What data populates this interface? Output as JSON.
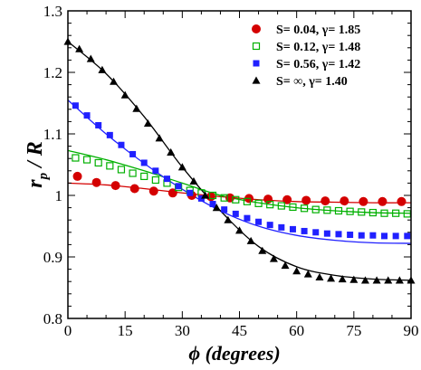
{
  "chart_data": {
    "type": "scatter",
    "xlabel": "ϕ (degrees)",
    "ylabel": "r_p / R",
    "xlim": [
      0,
      90
    ],
    "ylim": [
      0.8,
      1.3
    ],
    "xticks": [
      0,
      15,
      30,
      45,
      60,
      75,
      90
    ],
    "yticks": [
      0.8,
      0.9,
      1.0,
      1.1,
      1.2,
      1.3
    ],
    "xtick_labels": [
      "0",
      "15",
      "30",
      "45",
      "60",
      "75",
      "90"
    ],
    "ytick_labels": [
      "0.8",
      "0.9",
      "1",
      "1.1",
      "1.2",
      "1.3"
    ],
    "grid": false,
    "legend_position": "top-right",
    "series": [
      {
        "name": "S= 0.04, γ= 1.85",
        "marker": "filled-circle",
        "color": "#d40000",
        "x": [
          2.5,
          7.5,
          12.5,
          17.5,
          22.5,
          27.5,
          32.5,
          37.5,
          42.5,
          47.5,
          52.5,
          57.5,
          62.5,
          67.5,
          72.5,
          77.5,
          82.5,
          87.5
        ],
        "y": [
          1.031,
          1.021,
          1.016,
          1.011,
          1.007,
          1.004,
          1.0,
          0.998,
          0.996,
          0.995,
          0.994,
          0.993,
          0.992,
          0.991,
          0.991,
          0.99,
          0.99,
          0.99
        ],
        "fit_x": [
          0,
          10,
          20,
          30,
          40,
          50,
          60,
          70,
          80,
          90
        ],
        "fit_y": [
          1.02,
          1.017,
          1.011,
          1.004,
          0.998,
          0.993,
          0.99,
          0.989,
          0.988,
          0.988
        ]
      },
      {
        "name": "S= 0.12, γ= 1.48",
        "marker": "open-square",
        "color": "#00b000",
        "x": [
          2,
          5,
          8,
          11,
          14,
          17,
          20,
          23,
          26,
          29,
          32,
          35,
          38,
          41,
          44,
          47,
          50,
          53,
          56,
          59,
          62,
          65,
          68,
          71,
          74,
          77,
          80,
          83,
          86,
          89
        ],
        "y": [
          1.061,
          1.058,
          1.053,
          1.048,
          1.042,
          1.036,
          1.031,
          1.025,
          1.02,
          1.013,
          1.008,
          1.004,
          1.0,
          0.996,
          0.993,
          0.99,
          0.987,
          0.985,
          0.983,
          0.981,
          0.979,
          0.977,
          0.976,
          0.975,
          0.974,
          0.973,
          0.972,
          0.971,
          0.971,
          0.97
        ],
        "fit_x": [
          0,
          10,
          20,
          30,
          40,
          50,
          60,
          70,
          80,
          90
        ],
        "fit_y": [
          1.073,
          1.058,
          1.04,
          1.02,
          1.0,
          0.988,
          0.98,
          0.975,
          0.972,
          0.971
        ]
      },
      {
        "name": "S= 0.56, γ= 1.42",
        "marker": "filled-square",
        "color": "#2020ff",
        "x": [
          2,
          5,
          8,
          11,
          14,
          17,
          20,
          23,
          26,
          29,
          32,
          35,
          38,
          41,
          44,
          47,
          50,
          53,
          56,
          59,
          62,
          65,
          68,
          71,
          74,
          77,
          80,
          83,
          86,
          89
        ],
        "y": [
          1.146,
          1.13,
          1.114,
          1.098,
          1.082,
          1.067,
          1.053,
          1.04,
          1.027,
          1.015,
          1.004,
          0.995,
          0.986,
          0.977,
          0.97,
          0.963,
          0.957,
          0.952,
          0.948,
          0.945,
          0.942,
          0.94,
          0.938,
          0.937,
          0.936,
          0.935,
          0.935,
          0.934,
          0.934,
          0.934
        ],
        "fit_x": [
          0,
          10,
          20,
          30,
          40,
          50,
          60,
          70,
          80,
          90
        ],
        "fit_y": [
          1.155,
          1.1,
          1.052,
          1.01,
          0.975,
          0.95,
          0.935,
          0.927,
          0.923,
          0.922
        ]
      },
      {
        "name": "S= ∞,     γ= 1.40",
        "marker": "filled-triangle",
        "color": "#000000",
        "x": [
          0,
          3,
          6,
          9,
          12,
          15,
          18,
          21,
          24,
          27,
          30,
          33,
          36,
          39,
          42,
          45,
          48,
          51,
          54,
          57,
          60,
          63,
          66,
          69,
          72,
          75,
          78,
          81,
          84,
          87,
          90
        ],
        "y": [
          1.25,
          1.238,
          1.222,
          1.204,
          1.185,
          1.163,
          1.141,
          1.117,
          1.093,
          1.07,
          1.046,
          1.023,
          1.0,
          0.98,
          0.96,
          0.943,
          0.926,
          0.91,
          0.897,
          0.886,
          0.877,
          0.872,
          0.867,
          0.865,
          0.864,
          0.863,
          0.862,
          0.862,
          0.862,
          0.862,
          0.862
        ],
        "fit_x": [
          0,
          10,
          20,
          30,
          40,
          50,
          60,
          70,
          80,
          90
        ],
        "fit_y": [
          1.25,
          1.198,
          1.128,
          1.046,
          0.975,
          0.917,
          0.884,
          0.87,
          0.864,
          0.862
        ]
      }
    ]
  }
}
